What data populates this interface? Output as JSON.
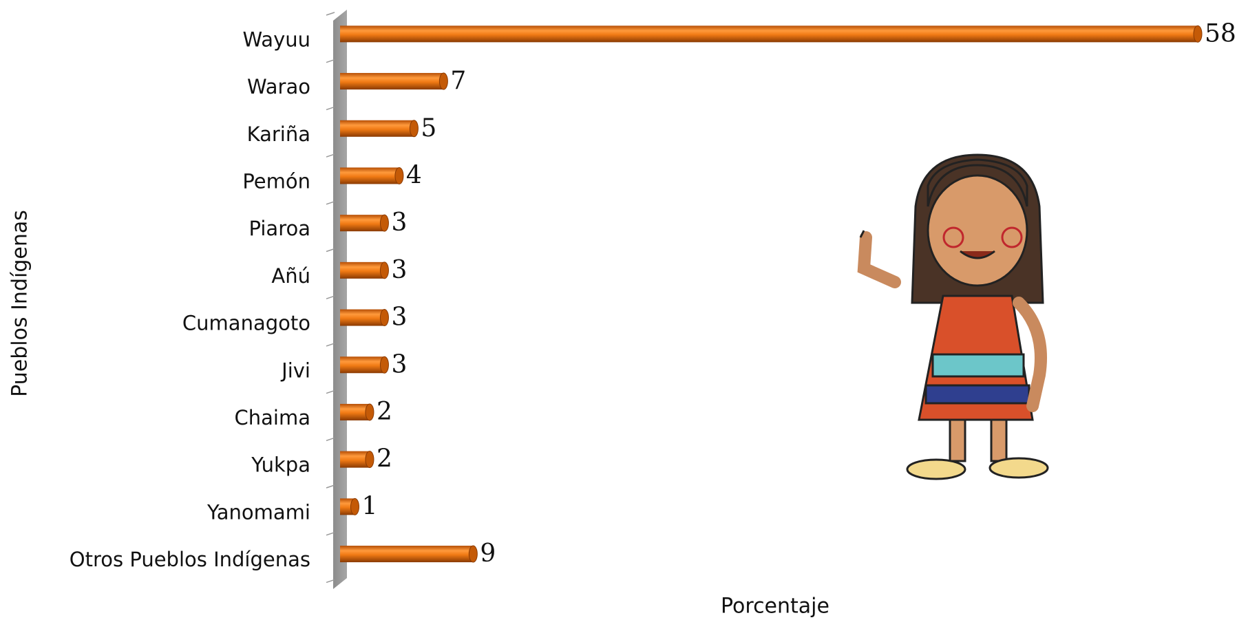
{
  "chart_data": {
    "type": "bar",
    "orientation": "horizontal",
    "categories": [
      "Wayuu",
      "Warao",
      "Kariña",
      "Pemón",
      "Piaroa",
      "Añú",
      "Cumanagoto",
      "Jivi",
      "Chaima",
      "Yukpa",
      "Yanomami",
      "Otros Pueblos Indígenas"
    ],
    "values": [
      58,
      7,
      5,
      4,
      3,
      3,
      3,
      3,
      2,
      2,
      1,
      9
    ],
    "color": "#e8740c",
    "xlabel": "Porcentaje",
    "ylabel": "Pueblos Indígenas"
  }
}
